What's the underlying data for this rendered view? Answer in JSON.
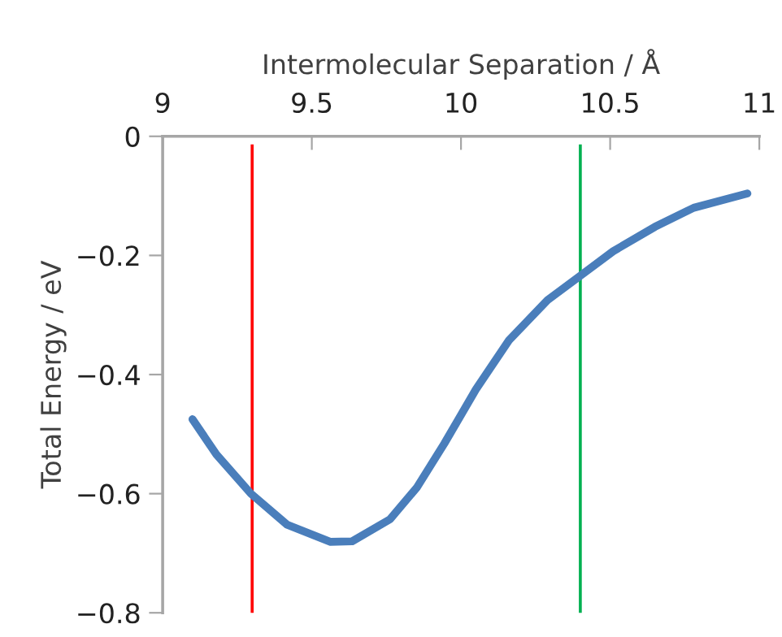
{
  "chart_data": {
    "type": "line",
    "xlabel": "Intermolecular Separation / Å",
    "ylabel": "Total Energy / eV",
    "series": [
      {
        "color": "#4a7ebb",
        "x": [
          9.1,
          9.18,
          9.296,
          9.417,
          9.563,
          9.635,
          9.762,
          9.853,
          9.944,
          10.05,
          10.16,
          10.29,
          10.4,
          10.51,
          10.65,
          10.78,
          10.96
        ],
        "values": [
          -0.475,
          -0.534,
          -0.6,
          -0.652,
          -0.681,
          -0.68,
          -0.643,
          -0.589,
          -0.516,
          -0.425,
          -0.343,
          -0.275,
          -0.234,
          -0.193,
          -0.152,
          -0.12,
          -0.096
        ]
      }
    ],
    "xlim": [
      9,
      11
    ],
    "xticks": [
      9,
      9.5,
      10,
      10.5,
      11
    ],
    "ylim": [
      -0.8,
      0
    ],
    "yticks": [
      0,
      -0.2,
      -0.4,
      -0.6,
      -0.8
    ],
    "ref_lines": [
      {
        "axis": "x",
        "value": 9.3,
        "color": "#ff0000"
      },
      {
        "axis": "x",
        "value": 10.4,
        "color": "#00b050"
      }
    ],
    "grid": false,
    "legend": false,
    "marker": "none",
    "line_style": "solid"
  }
}
